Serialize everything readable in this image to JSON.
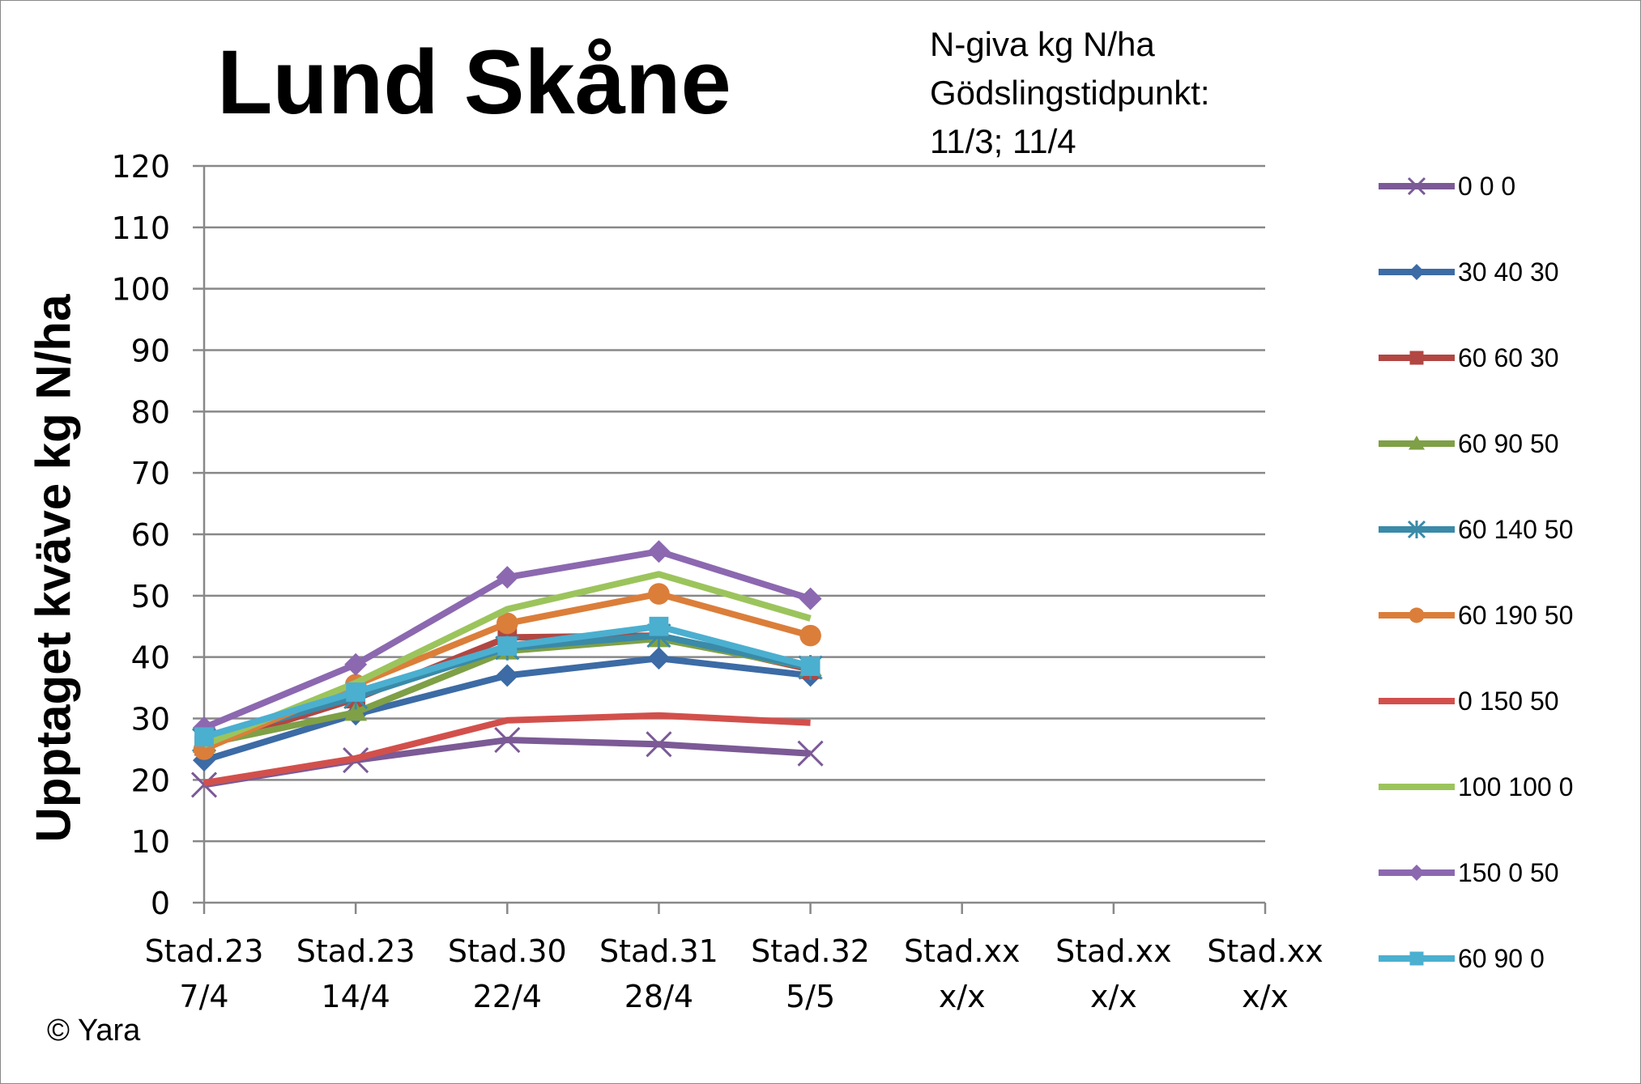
{
  "title": "Lund Skåne",
  "subtitle_lines": [
    "N-giva kg N/ha",
    "Gödslingstidpunkt:",
    "11/3; 11/4"
  ],
  "copyright": "© Yara",
  "chart_data": {
    "type": "line",
    "title": "Lund Skåne",
    "xlabel": "",
    "ylabel": "Upptaget kväve kg N/ha",
    "ylim": [
      0,
      120
    ],
    "yticks": [
      0,
      10,
      20,
      30,
      40,
      50,
      60,
      70,
      80,
      90,
      100,
      110,
      120
    ],
    "grid": true,
    "legend_position": "right",
    "categories": [
      [
        "Stad.23",
        "7/4"
      ],
      [
        "Stad.23",
        "14/4"
      ],
      [
        "Stad.30",
        "22/4"
      ],
      [
        "Stad.31",
        "28/4"
      ],
      [
        "Stad.32",
        "5/5"
      ],
      [
        "Stad.xx",
        "x/x"
      ],
      [
        "Stad.xx",
        "x/x"
      ],
      [
        "Stad.xx",
        "x/x"
      ]
    ],
    "series": [
      {
        "name": "0 0 0",
        "color": "#7B5A96",
        "marker": "x",
        "values": [
          19.2,
          23.2,
          26.5,
          25.8,
          24.3,
          null,
          null,
          null
        ]
      },
      {
        "name": "30 40 30",
        "color": "#3C6BA5",
        "marker": "diamond",
        "values": [
          23.2,
          30.7,
          37.0,
          39.8,
          37.0,
          null,
          null,
          null
        ]
      },
      {
        "name": "60 60 30",
        "color": "#B24642",
        "marker": "square",
        "values": [
          25.5,
          33.2,
          43.2,
          43.5,
          38.0,
          null,
          null,
          null
        ]
      },
      {
        "name": "60 90 50",
        "color": "#7FA046",
        "marker": "triangle",
        "values": [
          25.8,
          31.0,
          41.0,
          43.0,
          38.3,
          null,
          null,
          null
        ]
      },
      {
        "name": "60 140 50",
        "color": "#3A8AA8",
        "marker": "star",
        "values": [
          26.5,
          33.5,
          41.5,
          43.5,
          38.3,
          null,
          null,
          null
        ]
      },
      {
        "name": "60 190 50",
        "color": "#DB7E3A",
        "marker": "circle",
        "values": [
          25.0,
          35.5,
          45.5,
          50.3,
          43.5,
          null,
          null,
          null
        ]
      },
      {
        "name": "0 150 50",
        "color": "#D2504C",
        "marker": "none",
        "values": [
          19.5,
          23.5,
          29.7,
          30.5,
          29.3,
          null,
          null,
          null
        ]
      },
      {
        "name": "100 100 0",
        "color": "#9CC45C",
        "marker": "none",
        "values": [
          25.7,
          35.8,
          47.8,
          53.5,
          46.3,
          null,
          null,
          null
        ]
      },
      {
        "name": "150 0 50",
        "color": "#8C68B0",
        "marker": "diamond",
        "values": [
          28.5,
          38.8,
          53.0,
          57.2,
          49.5,
          null,
          null,
          null
        ]
      },
      {
        "name": "60 90 0",
        "color": "#4BAFD0",
        "marker": "square",
        "values": [
          27.0,
          34.3,
          41.8,
          45.0,
          38.5,
          null,
          null,
          null
        ]
      }
    ]
  }
}
